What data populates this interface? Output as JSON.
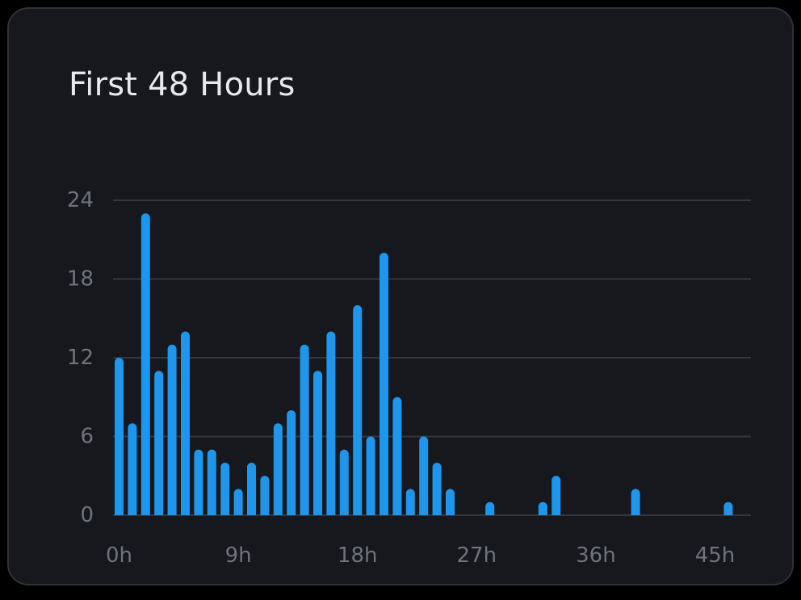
{
  "chart_data": {
    "type": "bar",
    "title": "First 48 Hours",
    "xlabel": "",
    "ylabel": "",
    "ylim": [
      0,
      24
    ],
    "yticks": [
      0,
      6,
      12,
      18,
      24
    ],
    "ytick_labels": [
      "0",
      "6",
      "12",
      "18",
      "24"
    ],
    "xticks": [
      0,
      9,
      18,
      27,
      36,
      45
    ],
    "xtick_labels": [
      "0h",
      "9h",
      "18h",
      "27h",
      "36h",
      "45h"
    ],
    "grid": true,
    "color": "#1e96ec",
    "x": [
      0,
      1,
      2,
      3,
      4,
      5,
      6,
      7,
      8,
      9,
      10,
      11,
      12,
      13,
      14,
      15,
      16,
      17,
      18,
      19,
      20,
      21,
      22,
      23,
      24,
      25,
      26,
      27,
      28,
      29,
      30,
      31,
      32,
      33,
      34,
      35,
      36,
      37,
      38,
      39,
      40,
      41,
      42,
      43,
      44,
      45,
      46,
      47
    ],
    "values": [
      12,
      7,
      23,
      11,
      13,
      14,
      5,
      5,
      4,
      2,
      4,
      3,
      7,
      8,
      13,
      11,
      14,
      5,
      16,
      6,
      20,
      9,
      2,
      6,
      4,
      2,
      0,
      0,
      1,
      0,
      0,
      0,
      1,
      3,
      0,
      0,
      0,
      0,
      0,
      2,
      0,
      0,
      0,
      0,
      0,
      0,
      1,
      0
    ]
  }
}
